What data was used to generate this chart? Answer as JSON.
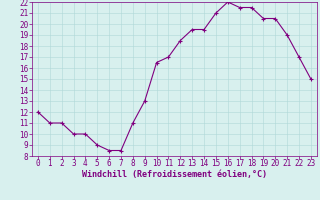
{
  "x": [
    0,
    1,
    2,
    3,
    4,
    5,
    6,
    7,
    8,
    9,
    10,
    11,
    12,
    13,
    14,
    15,
    16,
    17,
    18,
    19,
    20,
    21,
    22,
    23
  ],
  "y": [
    12,
    11,
    11,
    10,
    10,
    9,
    8.5,
    8.5,
    11,
    13,
    16.5,
    17,
    18.5,
    19.5,
    19.5,
    21,
    22,
    21.5,
    21.5,
    20.5,
    20.5,
    19,
    17,
    15
  ],
  "line_color": "#800080",
  "marker": "+",
  "bg_color": "#d8f0ee",
  "plot_bg": "#d8f0ee",
  "grid_color": "#b0d8d8",
  "xlabel": "Windchill (Refroidissement éolien,°C)",
  "ylim": [
    8,
    22
  ],
  "xlim_min": -0.5,
  "xlim_max": 23.5,
  "yticks": [
    8,
    9,
    10,
    11,
    12,
    13,
    14,
    15,
    16,
    17,
    18,
    19,
    20,
    21,
    22
  ],
  "xticks": [
    0,
    1,
    2,
    3,
    4,
    5,
    6,
    7,
    8,
    9,
    10,
    11,
    12,
    13,
    14,
    15,
    16,
    17,
    18,
    19,
    20,
    21,
    22,
    23
  ],
  "axis_color": "#800080",
  "tick_color": "#800080",
  "xlabel_color": "#800080",
  "line_width": 0.8,
  "marker_size": 3,
  "tick_fontsize": 5.5,
  "xlabel_fontsize": 6.0
}
